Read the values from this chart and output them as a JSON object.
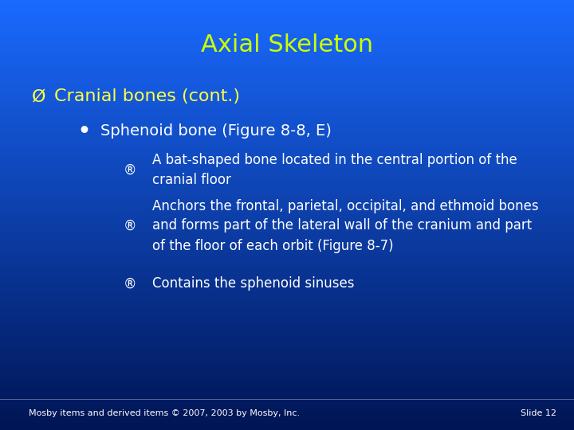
{
  "title": "Axial Skeleton",
  "title_color": "#CCFF00",
  "title_fontsize": 22,
  "bg_color_top": "#1a6aff",
  "bg_color_bottom": "#001555",
  "level1_bullet": "Ø",
  "level1_text": "Cranial bones (cont.)",
  "level1_color": "#FFFF44",
  "level1_fontsize": 16,
  "level2_bullet": "•",
  "level2_text": "Sphenoid bone (Figure 8-8, E)",
  "level2_color": "#FFFFFF",
  "level2_fontsize": 14,
  "level3_bullet": "®",
  "level3_color": "#FFFFFF",
  "level3_fontsize": 12,
  "level3_items": [
    "A bat-shaped bone located in the central portion of the\ncranial floor",
    "Anchors the frontal, parietal, occipital, and ethmoid bones\nand forms part of the lateral wall of the cranium and part\nof the floor of each orbit (Figure 8-7)",
    "Contains the sphenoid sinuses"
  ],
  "footer_text": "Mosby items and derived items © 2007, 2003 by Mosby, Inc.",
  "footer_right": "Slide 12",
  "footer_color": "#FFFFFF",
  "footer_fontsize": 8
}
